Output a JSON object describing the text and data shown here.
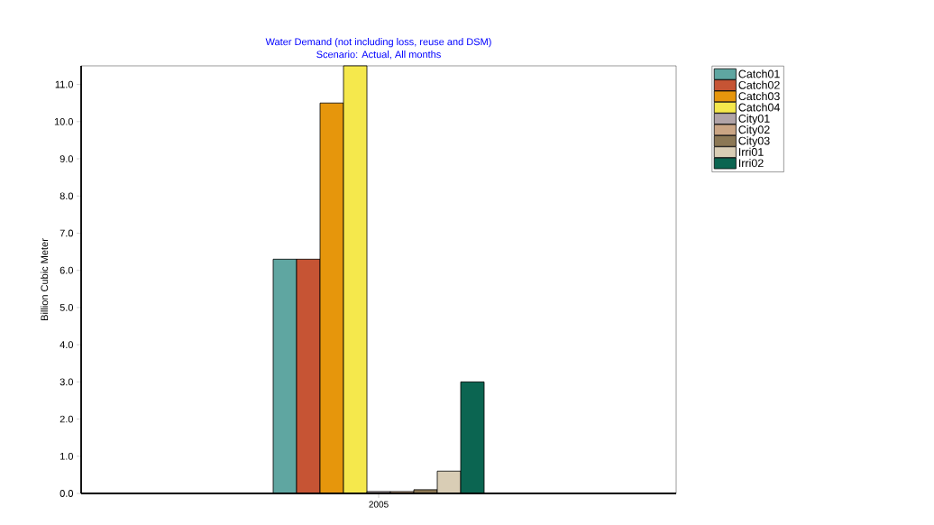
{
  "chart_data": {
    "type": "bar",
    "title": "Water Demand (not including loss, reuse and DSM)",
    "subtitle": "Scenario: Actual,  All months",
    "ylabel": "Billion Cubic Meter",
    "categories": [
      "2005"
    ],
    "series": [
      {
        "name": "Catch01",
        "color": "#5fa6a1",
        "values": [
          6.3
        ]
      },
      {
        "name": "Catch02",
        "color": "#c65434",
        "values": [
          6.3
        ]
      },
      {
        "name": "Catch03",
        "color": "#e6960c",
        "values": [
          10.5
        ]
      },
      {
        "name": "Catch04",
        "color": "#f5e84c",
        "values": [
          11.5
        ]
      },
      {
        "name": "City01",
        "color": "#b1a4a8",
        "values": [
          0.05
        ]
      },
      {
        "name": "City02",
        "color": "#caa584",
        "values": [
          0.05
        ]
      },
      {
        "name": "City03",
        "color": "#8c7855",
        "values": [
          0.1
        ]
      },
      {
        "name": "Irri01",
        "color": "#d9cdb5",
        "values": [
          0.6
        ]
      },
      {
        "name": "Irri02",
        "color": "#0b6551",
        "values": [
          3.0
        ]
      }
    ],
    "ylim": [
      0,
      11.5
    ],
    "yticks": [
      {
        "value": 0,
        "label": "0.0"
      },
      {
        "value": 1,
        "label": "1.0"
      },
      {
        "value": 2,
        "label": "2.0"
      },
      {
        "value": 3,
        "label": "3.0"
      },
      {
        "value": 4,
        "label": "4.0"
      },
      {
        "value": 5,
        "label": "5.0"
      },
      {
        "value": 6,
        "label": "6.0"
      },
      {
        "value": 7,
        "label": "7.0"
      },
      {
        "value": 8,
        "label": "8.0"
      },
      {
        "value": 9,
        "label": "9.0"
      },
      {
        "value": 10,
        "label": "10.0"
      },
      {
        "value": 11,
        "label": "11.0"
      }
    ],
    "grid": false,
    "legend": "right"
  }
}
